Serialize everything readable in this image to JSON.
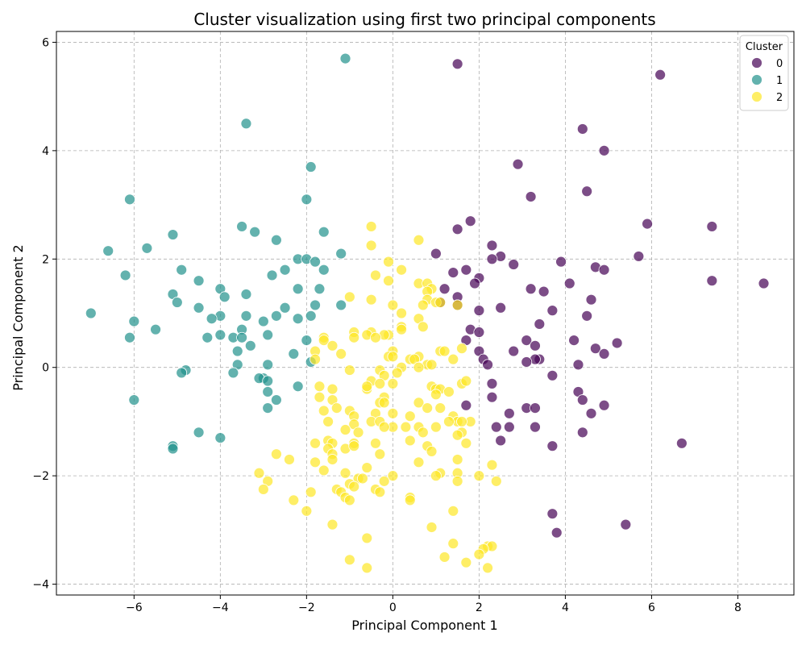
{
  "chart_data": {
    "type": "scatter",
    "title": "Cluster visualization using first two principal components",
    "xlabel": "Principal Component 1",
    "ylabel": "Principal Component 2",
    "xlim": [
      -7.8,
      9.3
    ],
    "ylim": [
      -4.2,
      6.2
    ],
    "xticks": [
      -6,
      -4,
      -2,
      0,
      2,
      4,
      6,
      8
    ],
    "yticks": [
      -4,
      -2,
      0,
      2,
      4,
      6
    ],
    "grid": true,
    "legend": {
      "title": "Cluster",
      "placement": "top-right"
    },
    "series": [
      {
        "name": "0",
        "color": "#440154",
        "points": [
          [
            1.5,
            5.6
          ],
          [
            6.2,
            5.4
          ],
          [
            4.4,
            4.4
          ],
          [
            4.9,
            4.0
          ],
          [
            2.9,
            3.75
          ],
          [
            4.5,
            3.25
          ],
          [
            3.2,
            3.15
          ],
          [
            1.8,
            2.7
          ],
          [
            5.9,
            2.65
          ],
          [
            7.4,
            2.6
          ],
          [
            1.5,
            2.55
          ],
          [
            2.3,
            2.25
          ],
          [
            1.0,
            2.1
          ],
          [
            2.5,
            2.05
          ],
          [
            5.7,
            2.05
          ],
          [
            2.3,
            2.0
          ],
          [
            2.8,
            1.9
          ],
          [
            3.9,
            1.95
          ],
          [
            1.7,
            1.8
          ],
          [
            4.7,
            1.85
          ],
          [
            4.9,
            1.8
          ],
          [
            1.4,
            1.75
          ],
          [
            2.0,
            1.65
          ],
          [
            7.4,
            1.6
          ],
          [
            8.6,
            1.55
          ],
          [
            1.9,
            1.55
          ],
          [
            4.1,
            1.55
          ],
          [
            3.2,
            1.45
          ],
          [
            3.5,
            1.4
          ],
          [
            1.2,
            1.45
          ],
          [
            1.5,
            1.3
          ],
          [
            4.6,
            1.25
          ],
          [
            1.1,
            1.2
          ],
          [
            1.5,
            1.15
          ],
          [
            3.7,
            1.05
          ],
          [
            2.5,
            1.1
          ],
          [
            2.0,
            1.05
          ],
          [
            4.5,
            0.95
          ],
          [
            3.4,
            0.8
          ],
          [
            1.8,
            0.7
          ],
          [
            2.0,
            0.65
          ],
          [
            3.1,
            0.5
          ],
          [
            4.2,
            0.5
          ],
          [
            1.7,
            0.5
          ],
          [
            5.2,
            0.45
          ],
          [
            3.3,
            0.4
          ],
          [
            4.7,
            0.35
          ],
          [
            2.0,
            0.3
          ],
          [
            2.8,
            0.3
          ],
          [
            4.9,
            0.25
          ],
          [
            3.4,
            0.15
          ],
          [
            3.3,
            0.15
          ],
          [
            3.1,
            0.1
          ],
          [
            2.1,
            0.15
          ],
          [
            4.3,
            0.05
          ],
          [
            2.2,
            0.05
          ],
          [
            3.7,
            -0.15
          ],
          [
            2.3,
            -0.3
          ],
          [
            4.3,
            -0.45
          ],
          [
            2.3,
            -0.55
          ],
          [
            4.4,
            -0.6
          ],
          [
            1.7,
            -0.7
          ],
          [
            3.1,
            -0.75
          ],
          [
            3.3,
            -0.75
          ],
          [
            4.9,
            -0.7
          ],
          [
            2.7,
            -0.85
          ],
          [
            4.6,
            -0.85
          ],
          [
            2.4,
            -1.1
          ],
          [
            2.7,
            -1.1
          ],
          [
            3.3,
            -1.1
          ],
          [
            4.4,
            -1.2
          ],
          [
            2.5,
            -1.35
          ],
          [
            6.7,
            -1.4
          ],
          [
            3.7,
            -1.45
          ],
          [
            3.7,
            -2.7
          ],
          [
            5.4,
            -2.9
          ],
          [
            3.8,
            -3.05
          ]
        ]
      },
      {
        "name": "1",
        "color": "#21918c",
        "points": [
          [
            -1.1,
            5.7
          ],
          [
            -3.4,
            4.5
          ],
          [
            -1.9,
            3.7
          ],
          [
            -6.1,
            3.1
          ],
          [
            -2.0,
            3.1
          ],
          [
            -3.5,
            2.6
          ],
          [
            -1.6,
            2.5
          ],
          [
            -3.2,
            2.5
          ],
          [
            -5.1,
            2.45
          ],
          [
            -2.7,
            2.35
          ],
          [
            -5.7,
            2.2
          ],
          [
            -6.6,
            2.15
          ],
          [
            -1.2,
            2.1
          ],
          [
            -2.2,
            2.0
          ],
          [
            -2.0,
            2.0
          ],
          [
            -1.8,
            1.95
          ],
          [
            -4.9,
            1.8
          ],
          [
            -2.5,
            1.8
          ],
          [
            -1.6,
            1.8
          ],
          [
            -6.2,
            1.7
          ],
          [
            -2.8,
            1.7
          ],
          [
            -4.5,
            1.6
          ],
          [
            -4.0,
            1.45
          ],
          [
            -2.2,
            1.45
          ],
          [
            -1.7,
            1.45
          ],
          [
            -5.1,
            1.35
          ],
          [
            -3.4,
            1.35
          ],
          [
            -3.9,
            1.3
          ],
          [
            -5.0,
            1.2
          ],
          [
            -1.8,
            1.15
          ],
          [
            -1.2,
            1.15
          ],
          [
            -4.5,
            1.1
          ],
          [
            -2.5,
            1.1
          ],
          [
            -7.0,
            1.0
          ],
          [
            -3.4,
            0.95
          ],
          [
            -4.0,
            0.95
          ],
          [
            -2.7,
            0.95
          ],
          [
            -2.2,
            0.9
          ],
          [
            -1.9,
            0.95
          ],
          [
            -4.2,
            0.9
          ],
          [
            -3.0,
            0.85
          ],
          [
            -6.0,
            0.85
          ],
          [
            -5.5,
            0.7
          ],
          [
            -3.5,
            0.7
          ],
          [
            -2.9,
            0.6
          ],
          [
            -4.0,
            0.6
          ],
          [
            -3.7,
            0.55
          ],
          [
            -3.5,
            0.55
          ],
          [
            -4.3,
            0.55
          ],
          [
            -6.1,
            0.55
          ],
          [
            -2.0,
            0.5
          ],
          [
            -3.3,
            0.4
          ],
          [
            -3.6,
            0.3
          ],
          [
            -2.3,
            0.25
          ],
          [
            -1.9,
            0.1
          ],
          [
            -2.9,
            0.05
          ],
          [
            -3.6,
            0.05
          ],
          [
            -4.8,
            -0.05
          ],
          [
            -3.7,
            -0.1
          ],
          [
            -4.9,
            -0.1
          ],
          [
            -3.0,
            -0.2
          ],
          [
            -3.1,
            -0.2
          ],
          [
            -2.9,
            -0.25
          ],
          [
            -2.2,
            -0.35
          ],
          [
            -2.9,
            -0.45
          ],
          [
            -6.0,
            -0.6
          ],
          [
            -2.7,
            -0.6
          ],
          [
            -2.9,
            -0.75
          ],
          [
            -4.5,
            -1.2
          ],
          [
            -4.0,
            -1.3
          ],
          [
            -5.1,
            -1.45
          ],
          [
            -5.1,
            -1.5
          ]
        ]
      },
      {
        "name": "2",
        "color": "#fde725",
        "points": [
          [
            -0.5,
            2.6
          ],
          [
            0.6,
            2.35
          ],
          [
            -0.5,
            2.25
          ],
          [
            -0.1,
            1.95
          ],
          [
            0.2,
            1.8
          ],
          [
            -0.4,
            1.7
          ],
          [
            -0.1,
            1.6
          ],
          [
            0.6,
            1.55
          ],
          [
            0.8,
            1.55
          ],
          [
            0.9,
            1.45
          ],
          [
            0.8,
            1.4
          ],
          [
            -1.0,
            1.3
          ],
          [
            -0.5,
            1.25
          ],
          [
            0.8,
            1.25
          ],
          [
            1.0,
            1.2
          ],
          [
            1.1,
            1.2
          ],
          [
            0.0,
            1.15
          ],
          [
            0.7,
            1.15
          ],
          [
            1.5,
            1.15
          ],
          [
            0.2,
            1.0
          ],
          [
            0.6,
            0.9
          ],
          [
            0.2,
            0.75
          ],
          [
            0.7,
            0.75
          ],
          [
            0.2,
            0.7
          ],
          [
            -0.9,
            0.65
          ],
          [
            -0.5,
            0.65
          ],
          [
            -0.6,
            0.6
          ],
          [
            -0.1,
            0.6
          ],
          [
            -0.2,
            0.6
          ],
          [
            -0.9,
            0.55
          ],
          [
            -0.4,
            0.55
          ],
          [
            -1.6,
            0.55
          ],
          [
            -1.6,
            0.5
          ],
          [
            -1.4,
            0.4
          ],
          [
            -1.8,
            0.3
          ],
          [
            1.1,
            0.3
          ],
          [
            1.2,
            0.3
          ],
          [
            0.0,
            0.3
          ],
          [
            -1.2,
            0.25
          ],
          [
            -0.1,
            0.2
          ],
          [
            -1.8,
            0.15
          ],
          [
            0.0,
            0.2
          ],
          [
            0.6,
            0.2
          ],
          [
            0.4,
            0.15
          ],
          [
            1.4,
            0.15
          ],
          [
            0.5,
            0.15
          ],
          [
            1.6,
            0.35
          ],
          [
            0.8,
            0.05
          ],
          [
            0.9,
            0.05
          ],
          [
            0.6,
            0.0
          ],
          [
            0.2,
            0.0
          ],
          [
            -1.0,
            -0.05
          ],
          [
            -0.3,
            -0.05
          ],
          [
            0.1,
            -0.1
          ],
          [
            -0.2,
            -0.15
          ],
          [
            -0.5,
            -0.25
          ],
          [
            0.0,
            -0.3
          ],
          [
            -0.3,
            -0.3
          ],
          [
            1.6,
            -0.3
          ],
          [
            1.7,
            -0.25
          ],
          [
            0.9,
            -0.35
          ],
          [
            1.0,
            -0.4
          ],
          [
            1.1,
            -0.4
          ],
          [
            1.3,
            -0.45
          ],
          [
            -1.7,
            -0.35
          ],
          [
            -1.4,
            -0.4
          ],
          [
            -0.6,
            -0.4
          ],
          [
            -0.6,
            -0.35
          ],
          [
            -0.2,
            -0.55
          ],
          [
            1.0,
            -0.5
          ],
          [
            -1.4,
            -0.6
          ],
          [
            -1.7,
            -0.55
          ],
          [
            -0.3,
            -0.65
          ],
          [
            -0.2,
            -0.65
          ],
          [
            0.6,
            -0.65
          ],
          [
            -1.3,
            -0.75
          ],
          [
            -1.0,
            -0.8
          ],
          [
            0.0,
            -0.85
          ],
          [
            0.8,
            -0.75
          ],
          [
            1.1,
            -0.75
          ],
          [
            -1.6,
            -0.8
          ],
          [
            -0.4,
            -0.85
          ],
          [
            -0.9,
            -0.9
          ],
          [
            0.4,
            -0.9
          ],
          [
            1.4,
            -0.9
          ],
          [
            -1.5,
            -1.0
          ],
          [
            -0.5,
            -1.0
          ],
          [
            1.5,
            -1.0
          ],
          [
            1.8,
            -1.0
          ],
          [
            1.3,
            -1.0
          ],
          [
            1.6,
            -1.0
          ],
          [
            -0.3,
            -1.0
          ],
          [
            -0.9,
            -1.05
          ],
          [
            0.6,
            -1.1
          ],
          [
            1.0,
            -1.1
          ],
          [
            0.0,
            -1.1
          ],
          [
            -0.2,
            -1.1
          ],
          [
            0.3,
            -1.1
          ],
          [
            -1.1,
            -1.15
          ],
          [
            -0.8,
            -1.2
          ],
          [
            0.7,
            -1.2
          ],
          [
            1.6,
            -1.2
          ],
          [
            1.5,
            -1.25
          ],
          [
            -1.5,
            -1.35
          ],
          [
            0.4,
            -1.35
          ],
          [
            -0.9,
            -1.4
          ],
          [
            -1.4,
            -1.4
          ],
          [
            -0.4,
            -1.4
          ],
          [
            -1.8,
            -1.4
          ],
          [
            1.7,
            -1.4
          ],
          [
            -1.1,
            -1.5
          ],
          [
            -0.9,
            -1.45
          ],
          [
            -1.5,
            -1.5
          ],
          [
            0.8,
            -1.45
          ],
          [
            0.9,
            -1.55
          ],
          [
            -1.4,
            -1.6
          ],
          [
            -2.7,
            -1.6
          ],
          [
            -0.3,
            -1.6
          ],
          [
            0.6,
            -1.75
          ],
          [
            1.5,
            -1.7
          ],
          [
            -2.4,
            -1.7
          ],
          [
            -1.8,
            -1.75
          ],
          [
            -1.4,
            -1.7
          ],
          [
            -0.6,
            -1.85
          ],
          [
            -3.1,
            -1.95
          ],
          [
            -1.6,
            -1.9
          ],
          [
            -1.1,
            -1.95
          ],
          [
            1.1,
            -1.95
          ],
          [
            1.5,
            -1.95
          ],
          [
            0.0,
            -2.0
          ],
          [
            1.0,
            -2.0
          ],
          [
            2.0,
            -2.0
          ],
          [
            2.3,
            -1.8
          ],
          [
            -0.8,
            -2.05
          ],
          [
            -0.7,
            -2.05
          ],
          [
            -2.9,
            -2.1
          ],
          [
            -0.2,
            -2.1
          ],
          [
            -1.0,
            -2.15
          ],
          [
            1.5,
            -2.1
          ],
          [
            2.4,
            -2.1
          ],
          [
            -0.9,
            -2.2
          ],
          [
            -3.0,
            -2.25
          ],
          [
            -0.4,
            -2.25
          ],
          [
            -1.3,
            -2.25
          ],
          [
            -1.2,
            -2.3
          ],
          [
            -0.3,
            -2.3
          ],
          [
            -1.9,
            -2.3
          ],
          [
            -1.1,
            -2.4
          ],
          [
            -1.0,
            -2.45
          ],
          [
            0.4,
            -2.4
          ],
          [
            0.4,
            -2.45
          ],
          [
            -2.3,
            -2.45
          ],
          [
            1.4,
            -2.65
          ],
          [
            -2.0,
            -2.65
          ],
          [
            -1.4,
            -2.9
          ],
          [
            0.9,
            -2.95
          ],
          [
            -0.6,
            -3.15
          ],
          [
            1.4,
            -3.25
          ],
          [
            2.2,
            -3.3
          ],
          [
            2.3,
            -3.3
          ],
          [
            2.1,
            -3.35
          ],
          [
            2.0,
            -3.45
          ],
          [
            1.2,
            -3.5
          ],
          [
            -1.0,
            -3.55
          ],
          [
            1.7,
            -3.6
          ],
          [
            -0.6,
            -3.7
          ],
          [
            2.2,
            -3.7
          ]
        ]
      }
    ]
  }
}
